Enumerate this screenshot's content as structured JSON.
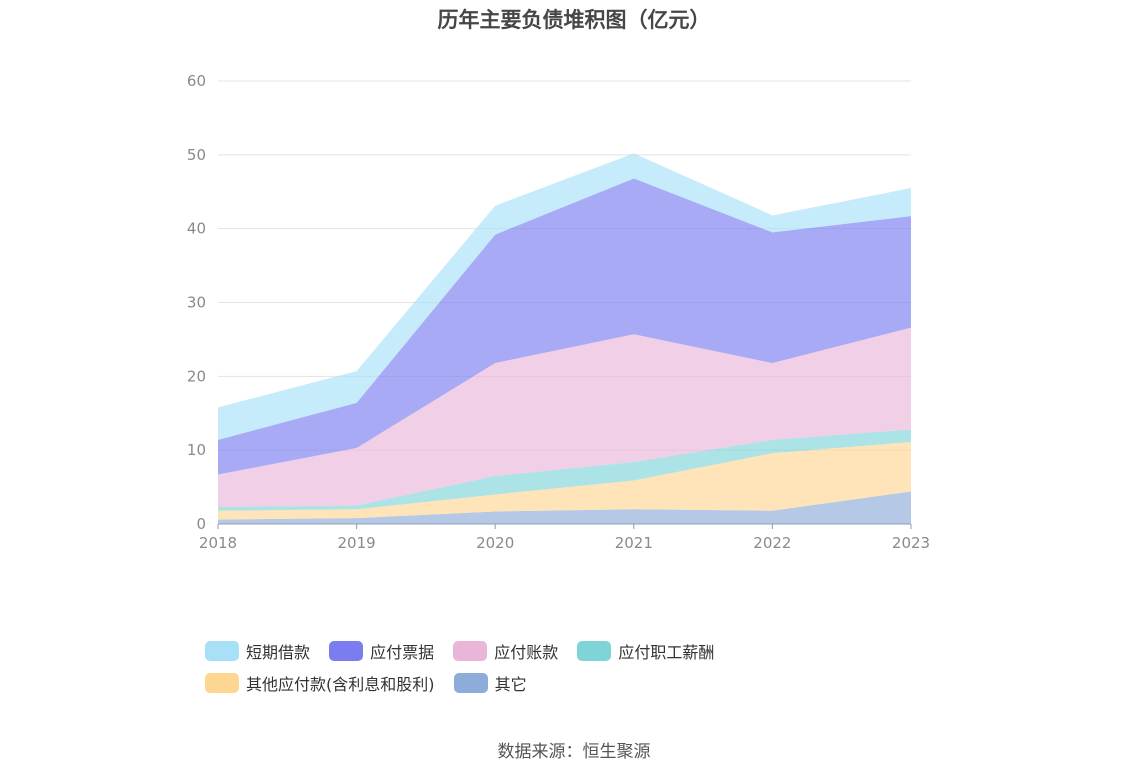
{
  "title": "历年主要负债堆积图（亿元）",
  "source": "数据来源：恒生聚源",
  "chart_data": {
    "type": "area",
    "stacked": true,
    "categories": [
      "2018",
      "2019",
      "2020",
      "2021",
      "2022",
      "2023"
    ],
    "y_ticks": [
      "0",
      "10",
      "20",
      "30",
      "40",
      "50",
      "60"
    ],
    "ylim": [
      0,
      60
    ],
    "grid": true,
    "legend_position": "bottom",
    "series": [
      {
        "name": "其它",
        "color": "#8eacd9",
        "values": [
          0.6,
          0.8,
          1.7,
          2.0,
          1.8,
          4.4
        ]
      },
      {
        "name": "其他应付款(含利息和股利)",
        "color": "#fdd692",
        "values": [
          1.2,
          1.2,
          2.3,
          3.9,
          7.8,
          6.7
        ]
      },
      {
        "name": "应付职工薪酬",
        "color": "#7fd4d8",
        "values": [
          0.5,
          0.5,
          2.5,
          2.5,
          1.8,
          1.7
        ]
      },
      {
        "name": "应付账款",
        "color": "#e9b5d8",
        "values": [
          4.4,
          7.8,
          15.3,
          17.3,
          10.4,
          13.8
        ]
      },
      {
        "name": "应付票据",
        "color": "#7b7cf0",
        "values": [
          4.7,
          6.1,
          17.4,
          21.1,
          17.7,
          15.1
        ]
      },
      {
        "name": "短期借款",
        "color": "#a8e0f7",
        "values": [
          4.4,
          4.3,
          3.9,
          3.4,
          2.3,
          3.8
        ]
      }
    ]
  },
  "legend": {
    "items": [
      {
        "label": "短期借款",
        "color": "#a8e0f7"
      },
      {
        "label": "应付票据",
        "color": "#7b7cf0"
      },
      {
        "label": "应付账款",
        "color": "#e9b5d8"
      },
      {
        "label": "应付职工薪酬",
        "color": "#7fd4d8"
      },
      {
        "label": "其他应付款(含利息和股利)",
        "color": "#fdd692"
      },
      {
        "label": "其它",
        "color": "#8eacd9"
      }
    ]
  }
}
